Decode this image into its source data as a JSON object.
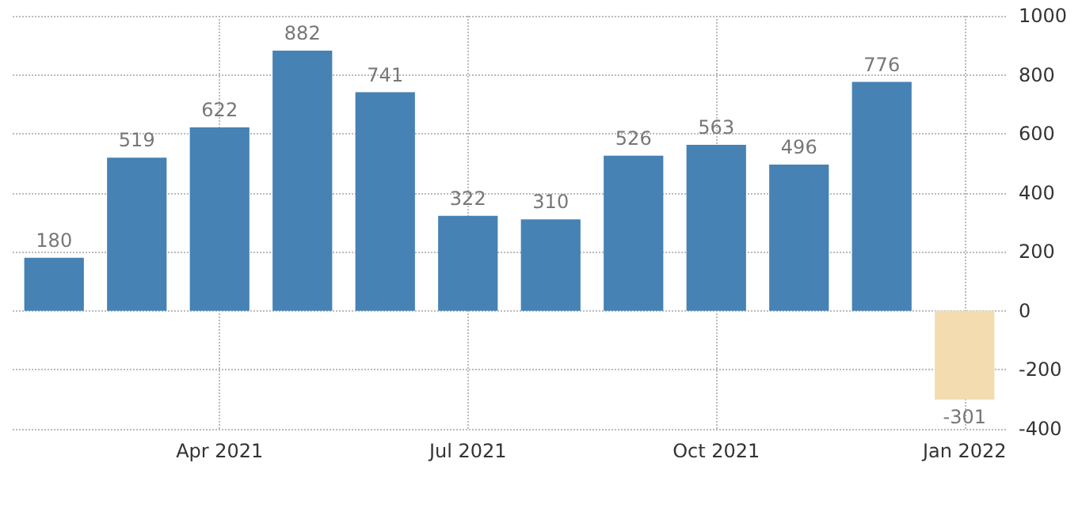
{
  "chart_data": {
    "type": "bar",
    "categories": [
      null,
      null,
      "Apr 2021",
      null,
      null,
      "Jul 2021",
      null,
      null,
      "Oct 2021",
      null,
      null,
      "Jan 2022"
    ],
    "values": [
      180,
      519,
      622,
      882,
      741,
      322,
      310,
      526,
      563,
      496,
      776,
      -301
    ],
    "colors": [
      "#4682b4",
      "#4682b4",
      "#4682b4",
      "#4682b4",
      "#4682b4",
      "#4682b4",
      "#4682b4",
      "#4682b4",
      "#4682b4",
      "#4682b4",
      "#4682b4",
      "#f3dcb0"
    ],
    "ylim": [
      -400,
      1000
    ],
    "yticks": [
      -400,
      -200,
      0,
      200,
      400,
      600,
      800,
      1000
    ],
    "data_labels": true,
    "grid": true
  }
}
